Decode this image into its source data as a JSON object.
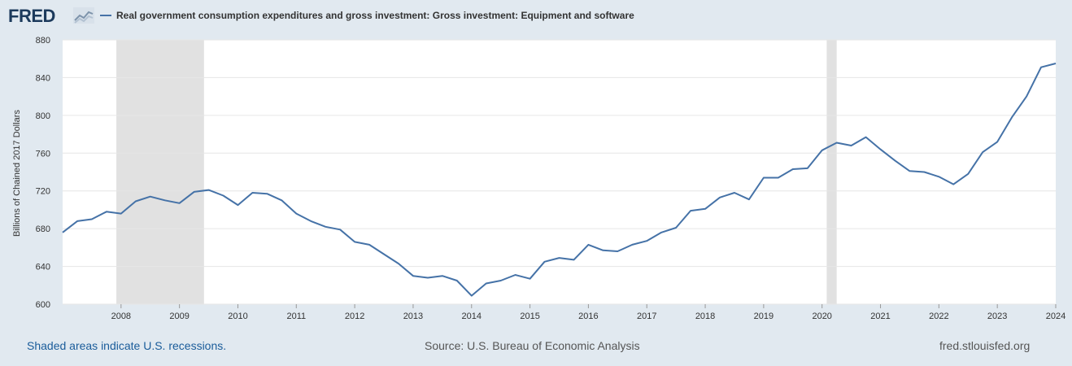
{
  "header": {
    "logo_text": "FRED",
    "series_title": "Real government consumption expenditures and gross investment: Gross investment: Equipment and software"
  },
  "footer": {
    "recession_note": "Shaded areas indicate U.S. recessions.",
    "source": "Source: U.S. Bureau of Economic Analysis",
    "site": "fred.stlouisfed.org"
  },
  "colors": {
    "line": "#4572a7",
    "recession": "#e1e1e1",
    "grid": "#e6e6e6",
    "page_bg": "#e1e9f0",
    "plot_bg": "#ffffff"
  },
  "chart_data": {
    "type": "line",
    "ylabel": "Billions of Chained 2017 Dollars",
    "xlabel": "",
    "ylim": [
      600,
      880
    ],
    "xlim": [
      2007.0,
      2024.0
    ],
    "y_ticks": [
      600,
      640,
      680,
      720,
      760,
      800,
      840,
      880
    ],
    "x_ticks": [
      "2008",
      "2009",
      "2010",
      "2011",
      "2012",
      "2013",
      "2014",
      "2015",
      "2016",
      "2017",
      "2018",
      "2019",
      "2020",
      "2021",
      "2022",
      "2023",
      "2024"
    ],
    "grid": true,
    "recessions": [
      [
        2007.92,
        2009.42
      ],
      [
        2020.08,
        2020.25
      ]
    ],
    "series": [
      {
        "x": [
          2007.0,
          2007.25,
          2007.5,
          2007.75,
          2008.0,
          2008.25,
          2008.5,
          2008.75,
          2009.0,
          2009.25,
          2009.5,
          2009.75,
          2010.0,
          2010.25,
          2010.5,
          2010.75,
          2011.0,
          2011.25,
          2011.5,
          2011.75,
          2012.0,
          2012.25,
          2012.5,
          2012.75,
          2013.0,
          2013.25,
          2013.5,
          2013.75,
          2014.0,
          2014.25,
          2014.5,
          2014.75,
          2015.0,
          2015.25,
          2015.5,
          2015.75,
          2016.0,
          2016.25,
          2016.5,
          2016.75,
          2017.0,
          2017.25,
          2017.5,
          2017.75,
          2018.0,
          2018.25,
          2018.5,
          2018.75,
          2019.0,
          2019.25,
          2019.5,
          2019.75,
          2020.0,
          2020.25,
          2020.5,
          2020.75,
          2021.0,
          2021.25,
          2021.5,
          2021.75,
          2022.0,
          2022.25,
          2022.5,
          2022.75,
          2023.0,
          2023.25,
          2023.5,
          2023.75,
          2024.0
        ],
        "y": [
          676,
          688,
          690,
          698,
          696,
          709,
          714,
          710,
          707,
          719,
          721,
          715,
          705,
          718,
          717,
          710,
          696,
          688,
          682,
          679,
          666,
          663,
          653,
          643,
          630,
          628,
          630,
          625,
          609,
          622,
          625,
          631,
          627,
          645,
          649,
          647,
          663,
          657,
          656,
          663,
          667,
          676,
          681,
          699,
          701,
          713,
          718,
          711,
          734,
          734,
          743,
          744,
          763,
          771,
          768,
          777,
          764,
          752,
          741,
          740,
          735,
          727,
          738,
          761,
          772,
          798,
          820,
          851,
          855
        ]
      }
    ]
  }
}
